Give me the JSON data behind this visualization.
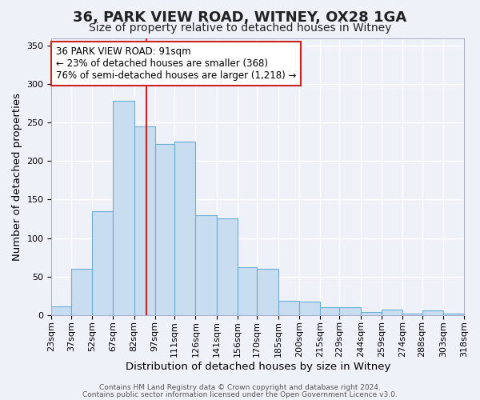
{
  "title": "36, PARK VIEW ROAD, WITNEY, OX28 1GA",
  "subtitle": "Size of property relative to detached houses in Witney",
  "xlabel": "Distribution of detached houses by size in Witney",
  "ylabel": "Number of detached properties",
  "bar_color": "#c8ddf0",
  "bar_edge_color": "#6baed6",
  "vline_x": 91,
  "vline_color": "#cc2222",
  "bin_edges": [
    23,
    37,
    52,
    67,
    82,
    97,
    111,
    126,
    141,
    156,
    170,
    185,
    200,
    215,
    229,
    244,
    259,
    274,
    288,
    303,
    318
  ],
  "bar_heights": [
    11,
    60,
    135,
    278,
    245,
    222,
    225,
    130,
    125,
    62,
    60,
    18,
    17,
    10,
    10,
    4,
    7,
    2,
    6,
    2
  ],
  "tick_labels": [
    "23sqm",
    "37sqm",
    "52sqm",
    "67sqm",
    "82sqm",
    "97sqm",
    "111sqm",
    "126sqm",
    "141sqm",
    "156sqm",
    "170sqm",
    "185sqm",
    "200sqm",
    "215sqm",
    "229sqm",
    "244sqm",
    "259sqm",
    "274sqm",
    "288sqm",
    "303sqm",
    "318sqm"
  ],
  "ylim": [
    0,
    360
  ],
  "yticks": [
    0,
    50,
    100,
    150,
    200,
    250,
    300,
    350
  ],
  "annotation_text_line1": "36 PARK VIEW ROAD: 91sqm",
  "annotation_text_line2": "← 23% of detached houses are smaller (368)",
  "annotation_text_line3": "76% of semi-detached houses are larger (1,218) →",
  "footer1": "Contains HM Land Registry data © Crown copyright and database right 2024.",
  "footer2": "Contains public sector information licensed under the Open Government Licence v3.0.",
  "background_color": "#eef2f8",
  "grid_color": "#ffffff",
  "title_fontsize": 13,
  "subtitle_fontsize": 10,
  "axis_label_fontsize": 9.5,
  "tick_fontsize": 8,
  "annotation_fontsize": 8.5
}
